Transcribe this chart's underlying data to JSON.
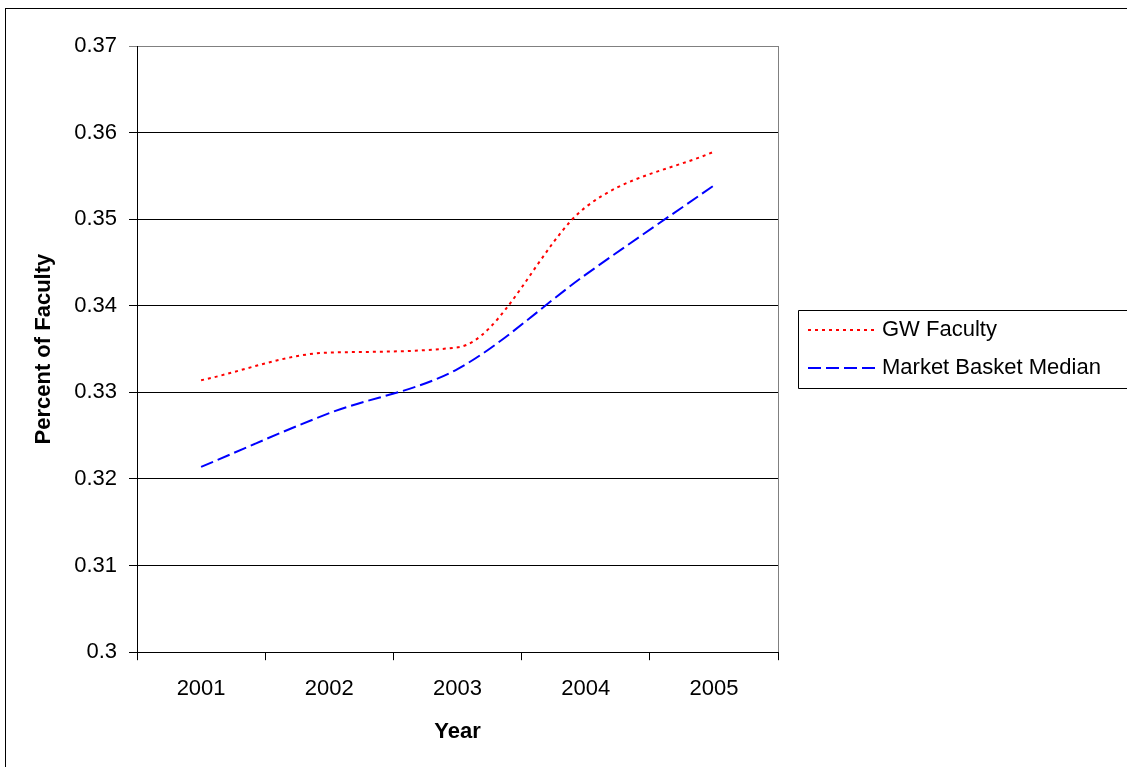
{
  "chart_data": {
    "type": "line",
    "xlabel": "Year",
    "ylabel": "Percent of Faculty",
    "categories": [
      "2001",
      "2002",
      "2003",
      "2004",
      "2005"
    ],
    "series": [
      {
        "name": "GW Faculty",
        "color": "#ff0000",
        "line_style": "dotted",
        "values": [
          0.3314,
          0.3346,
          0.3352,
          0.3514,
          0.3578
        ]
      },
      {
        "name": "Market Basket Median",
        "color": "#0000ff",
        "line_style": "dashed",
        "values": [
          0.3214,
          0.3276,
          0.3327,
          0.3436,
          0.3539
        ]
      }
    ],
    "ylim": [
      0.3,
      0.37
    ],
    "yticks": [
      0.3,
      0.31,
      0.32,
      0.33,
      0.34,
      0.35,
      0.36,
      0.37
    ],
    "grid": "y",
    "legend": "right",
    "marker": "none"
  }
}
